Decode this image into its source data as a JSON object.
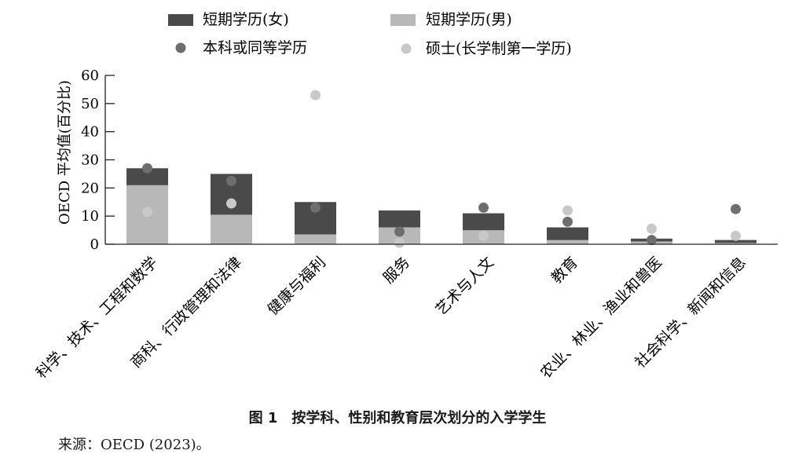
{
  "chart_data": {
    "type": "bar",
    "ylabel": "OECD 平均值(百分比)",
    "ylim": [
      0,
      60
    ],
    "yticks": [
      0,
      10,
      20,
      30,
      40,
      50,
      60
    ],
    "categories": [
      "科学、技术、工程和数学",
      "商科、行政管理和法律",
      "健康与福利",
      "服务",
      "艺术与人文",
      "教育",
      "农业、林业、渔业和兽医",
      "社会科学、新闻和信息"
    ],
    "series": [
      {
        "name": "短期学历(女)",
        "kind": "bar",
        "color": "#4a4a4a",
        "values": [
          27,
          25,
          15,
          12,
          11,
          6,
          2,
          1.5
        ]
      },
      {
        "name": "短期学历(男)",
        "kind": "bar",
        "color": "#b8b8b8",
        "values": [
          21,
          10.5,
          3.5,
          6,
          5,
          1.5,
          1,
          0.5
        ]
      },
      {
        "name": "本科或同等学历",
        "kind": "point",
        "color": "#6e6e6e",
        "values": [
          27,
          22.5,
          13,
          4.5,
          13,
          8,
          1.5,
          12.5
        ]
      },
      {
        "name": "硕士(长学制第一学历)",
        "kind": "point",
        "color": "#c8c8c8",
        "values": [
          11.5,
          14.5,
          53,
          0.5,
          3,
          12,
          5.5,
          3
        ]
      }
    ],
    "legend_position": "top",
    "grid": false
  },
  "caption": "图 1　按学科、性别和教育层次划分的入学学生",
  "source": "来源：OECD (2023)。"
}
